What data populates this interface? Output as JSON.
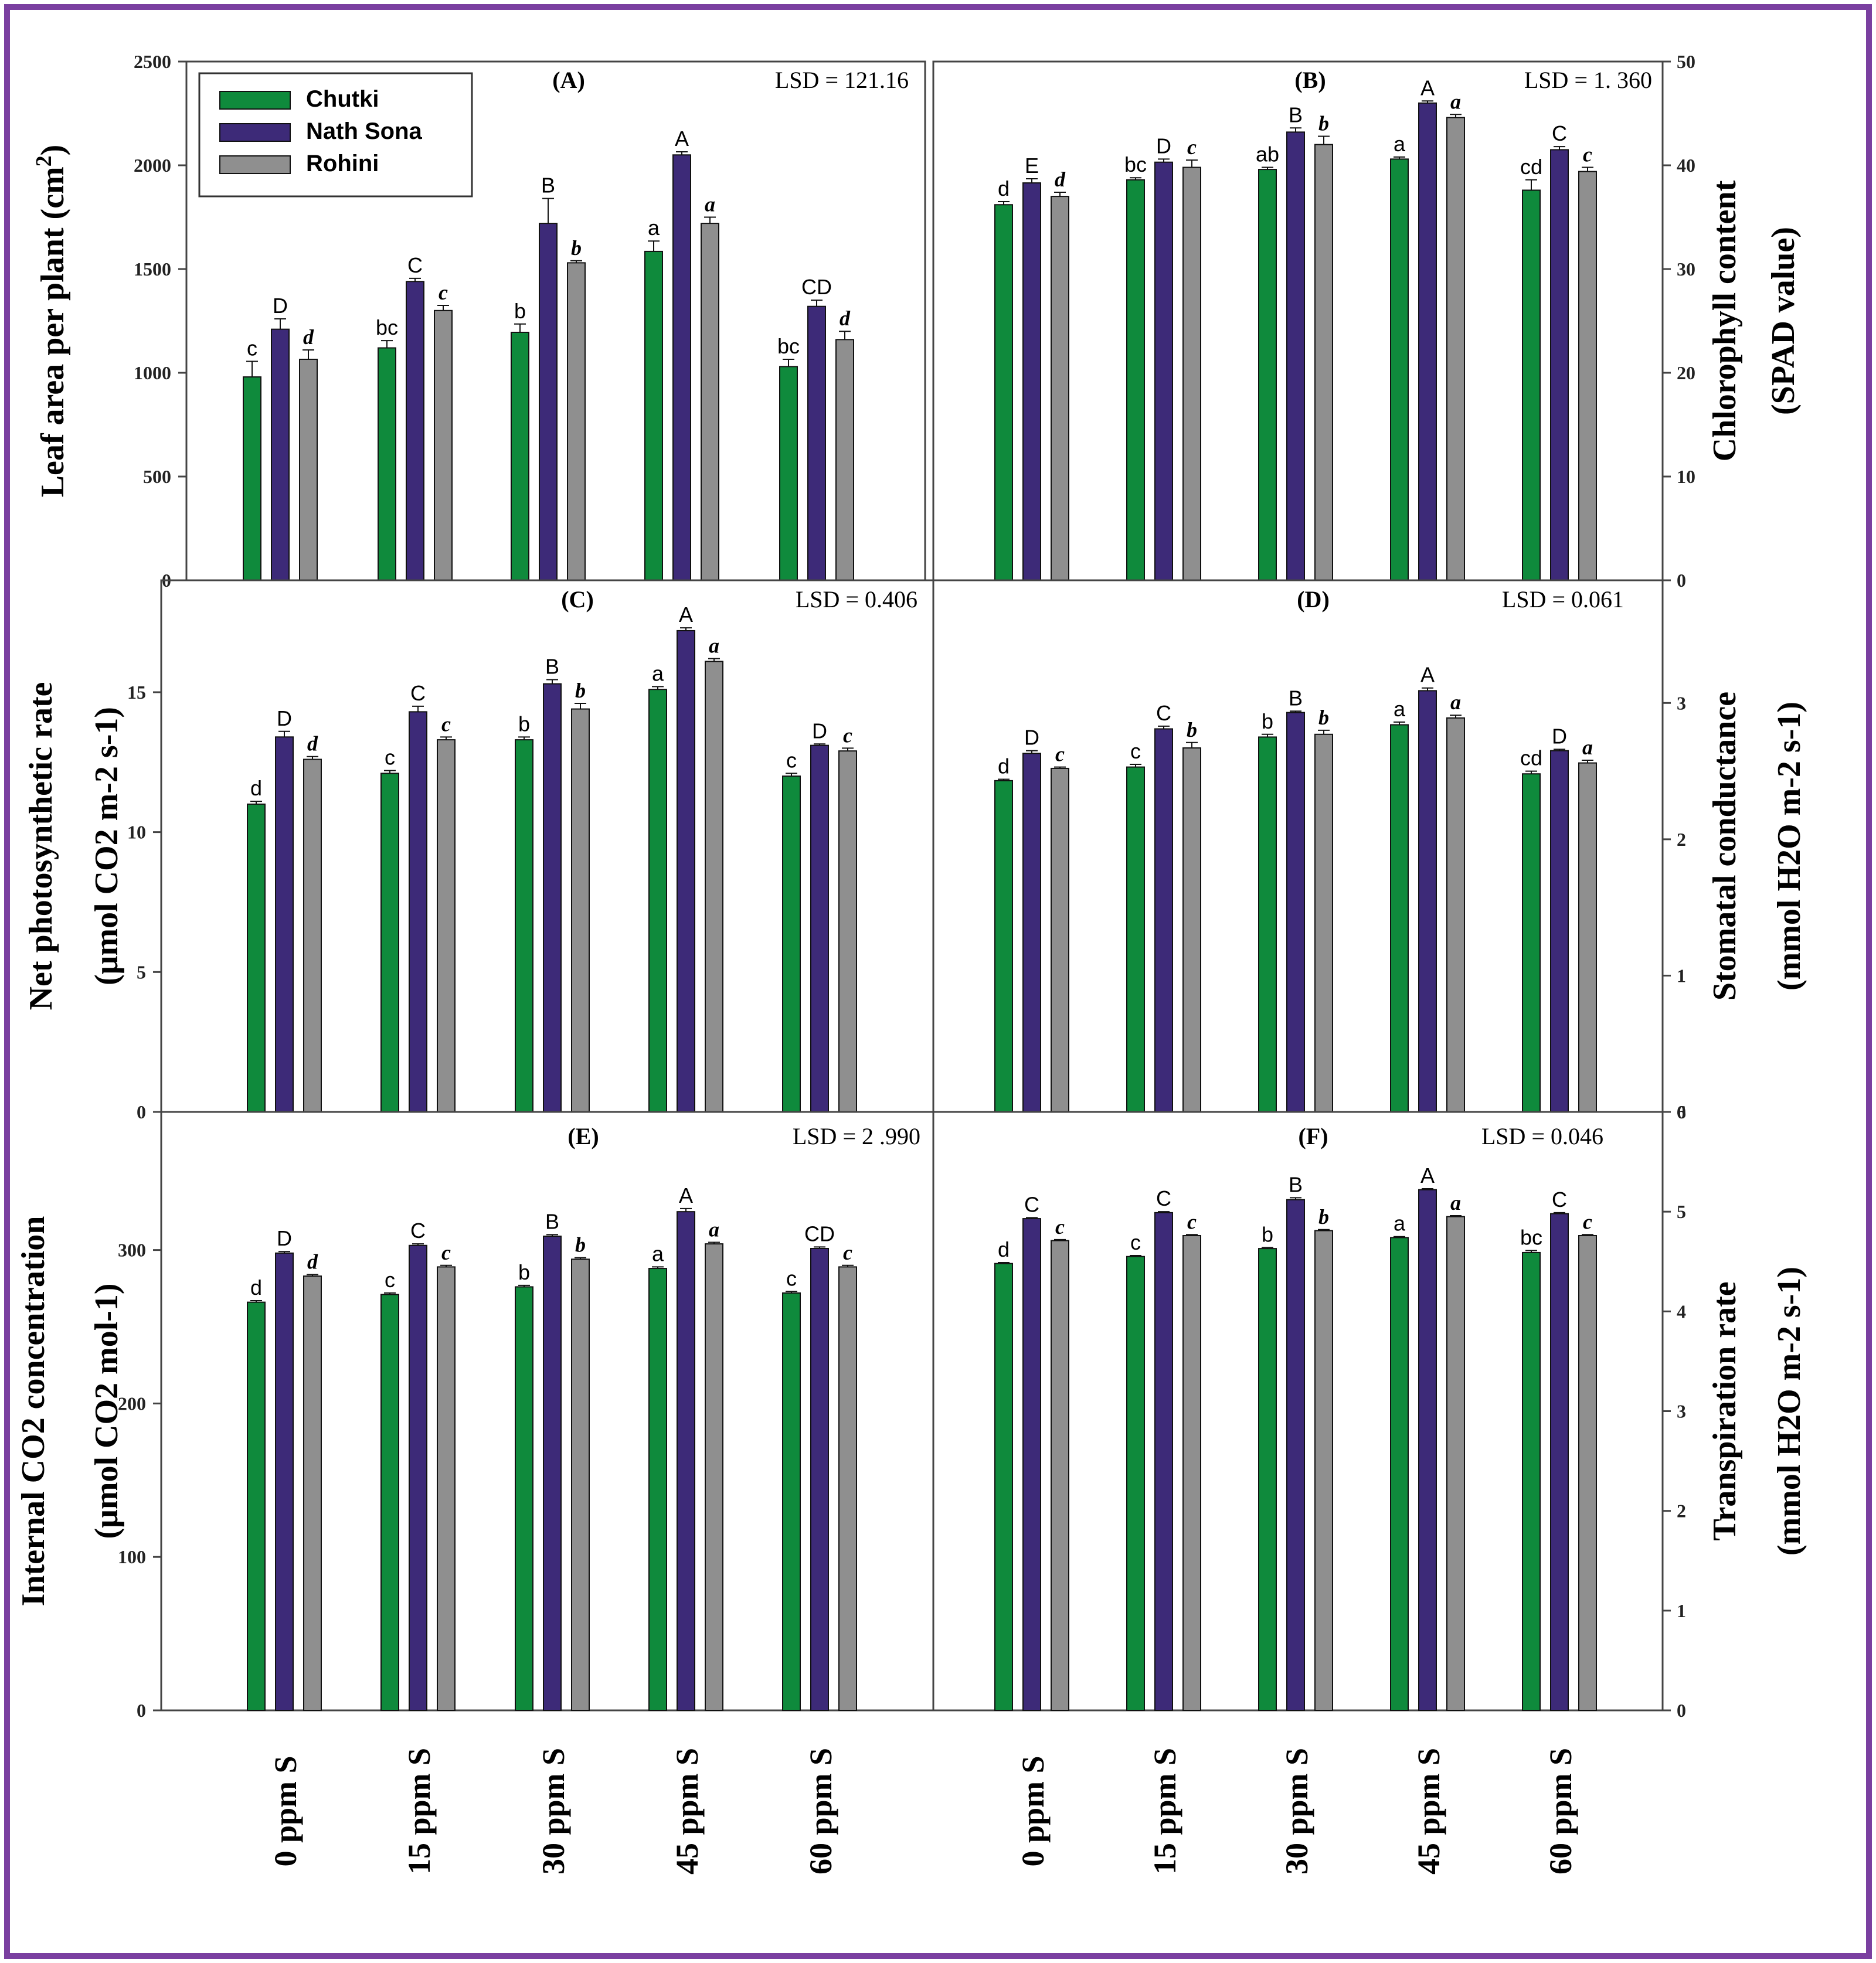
{
  "colors": {
    "frame": "#7a3fa0",
    "Chutki": "#0f8a3c",
    "Nath Sona": "#3d2a78",
    "Rohini": "#8f8f8f"
  },
  "legend": [
    "Chutki",
    "Nath Sona",
    "Rohini"
  ],
  "x_categories": [
    "0 ppm S",
    "15 ppm S",
    "30 ppm S",
    "45 ppm S",
    "60 ppm S"
  ],
  "chart_data": [
    {
      "type": "bar",
      "panel": "(A)",
      "lsd": "LSD = 121.16",
      "ylabel": [
        "Leaf area per plant (cm",
        "2",
        ")"
      ],
      "ylim": [
        0,
        2500
      ],
      "yticks": [
        0,
        500,
        1000,
        1500,
        2000,
        2500
      ],
      "categories": [
        "0 ppm S",
        "15 ppm S",
        "30 ppm S",
        "45 ppm S",
        "60 ppm S"
      ],
      "series": [
        {
          "name": "Chutki",
          "values": [
            980,
            1120,
            1195,
            1585,
            1030
          ],
          "errors": [
            75,
            35,
            40,
            50,
            35
          ],
          "labels": [
            "c",
            "bc",
            "b",
            "a",
            "bc"
          ]
        },
        {
          "name": "Nath Sona",
          "values": [
            1210,
            1440,
            1720,
            2050,
            1320
          ],
          "errors": [
            50,
            15,
            120,
            15,
            30
          ],
          "labels": [
            "D",
            "C",
            "B",
            "A",
            "CD"
          ]
        },
        {
          "name": "Rohini",
          "values": [
            1065,
            1300,
            1530,
            1720,
            1160
          ],
          "errors": [
            45,
            25,
            10,
            30,
            40
          ],
          "labels": [
            "d",
            "c",
            "b",
            "a",
            "d"
          ]
        }
      ]
    },
    {
      "type": "bar",
      "panel": "(B)",
      "lsd": "LSD = 1. 360",
      "ylabel": [
        "Chlorophyll content",
        "(SPAD value)"
      ],
      "ylim": [
        0,
        50
      ],
      "yticks": [
        0,
        10,
        20,
        30,
        40,
        50
      ],
      "categories": [
        "0 ppm S",
        "15 ppm S",
        "30 ppm S",
        "45 ppm S",
        "60 ppm S"
      ],
      "series": [
        {
          "name": "Chutki",
          "values": [
            36.2,
            38.6,
            39.6,
            40.6,
            37.6
          ],
          "errors": [
            0.3,
            0.2,
            0.2,
            0.2,
            1.0
          ],
          "labels": [
            "d",
            "bc",
            "ab",
            "a",
            "cd"
          ]
        },
        {
          "name": "Nath Sona",
          "values": [
            38.3,
            40.3,
            43.2,
            46.0,
            41.5
          ],
          "errors": [
            0.4,
            0.3,
            0.4,
            0.2,
            0.3
          ],
          "labels": [
            "E",
            "D",
            "B",
            "A",
            "C"
          ]
        },
        {
          "name": "Rohini",
          "values": [
            37.0,
            39.8,
            42.0,
            44.6,
            39.4
          ],
          "errors": [
            0.4,
            0.7,
            0.8,
            0.3,
            0.4
          ],
          "labels": [
            "d",
            "c",
            "b",
            "a",
            "c"
          ]
        }
      ]
    },
    {
      "type": "bar",
      "panel": "(C)",
      "lsd": "LSD = 0.406",
      "ylabel": [
        "Net photosynthetic rate",
        "(μmol CO2 m-2 s-1)"
      ],
      "ylim": [
        0,
        19
      ],
      "yticks": [
        0,
        5,
        10,
        15
      ],
      "categories": [
        "0 ppm S",
        "15 ppm S",
        "30 ppm S",
        "45 ppm S",
        "60 ppm S"
      ],
      "series": [
        {
          "name": "Chutki",
          "values": [
            11.0,
            12.1,
            13.3,
            15.1,
            12.0
          ],
          "errors": [
            0.1,
            0.1,
            0.1,
            0.1,
            0.1
          ],
          "labels": [
            "d",
            "c",
            "b",
            "a",
            "c"
          ]
        },
        {
          "name": "Nath Sona",
          "values": [
            13.4,
            14.3,
            15.3,
            17.2,
            13.1
          ],
          "errors": [
            0.2,
            0.2,
            0.15,
            0.1,
            0.05
          ],
          "labels": [
            "D",
            "C",
            "B",
            "A",
            "D"
          ]
        },
        {
          "name": "Rohini",
          "values": [
            12.6,
            13.3,
            14.4,
            16.1,
            12.9
          ],
          "errors": [
            0.1,
            0.1,
            0.2,
            0.1,
            0.1
          ],
          "labels": [
            "d",
            "c",
            "b",
            "a",
            "c"
          ]
        }
      ]
    },
    {
      "type": "bar",
      "panel": "(D)",
      "lsd": "LSD = 0.061",
      "ylabel": [
        "Stomatal conductance",
        "(mmol H2O m-2 s-1)"
      ],
      "ylim": [
        0,
        3.9
      ],
      "yticks": [
        0,
        1,
        2,
        3
      ],
      "categories": [
        "0 ppm S",
        "15 ppm S",
        "30 ppm S",
        "45 ppm S",
        "60 ppm S"
      ],
      "series": [
        {
          "name": "Chutki",
          "values": [
            2.43,
            2.53,
            2.75,
            2.84,
            2.48
          ],
          "errors": [
            0.01,
            0.02,
            0.02,
            0.02,
            0.02
          ],
          "labels": [
            "d",
            "c",
            "b",
            "a",
            "cd"
          ]
        },
        {
          "name": "Nath Sona",
          "values": [
            2.63,
            2.81,
            2.93,
            3.09,
            2.65
          ],
          "errors": [
            0.02,
            0.02,
            0.01,
            0.02,
            0.01
          ],
          "labels": [
            "D",
            "C",
            "B",
            "A",
            "D"
          ]
        },
        {
          "name": "Rohini",
          "values": [
            2.52,
            2.67,
            2.77,
            2.89,
            2.56
          ],
          "errors": [
            0.01,
            0.04,
            0.03,
            0.02,
            0.02
          ],
          "labels": [
            "c",
            "b",
            "b",
            "a",
            "a"
          ]
        }
      ]
    },
    {
      "type": "bar",
      "panel": "(E)",
      "lsd": "LSD = 2 .990",
      "ylabel": [
        "Internal CO2 concentration",
        "(μmol CO2 mol-1)"
      ],
      "ylim": [
        0,
        390
      ],
      "yticks": [
        0,
        100,
        200,
        300
      ],
      "categories": [
        "0 ppm S",
        "15 ppm S",
        "30 ppm S",
        "45 ppm S",
        "60 ppm S"
      ],
      "series": [
        {
          "name": "Chutki",
          "values": [
            266,
            271,
            276,
            288,
            272
          ],
          "errors": [
            1,
            1,
            1,
            1,
            1
          ],
          "labels": [
            "d",
            "c",
            "b",
            "a",
            "c"
          ]
        },
        {
          "name": "Nath Sona",
          "values": [
            298,
            303,
            309,
            325,
            301
          ],
          "errors": [
            1,
            1,
            1,
            2,
            1
          ],
          "labels": [
            "D",
            "C",
            "B",
            "A",
            "CD"
          ]
        },
        {
          "name": "Rohini",
          "values": [
            283,
            289,
            294,
            304,
            289
          ],
          "errors": [
            1,
            1,
            1,
            1,
            1
          ],
          "labels": [
            "d",
            "c",
            "b",
            "a",
            "c"
          ]
        }
      ]
    },
    {
      "type": "bar",
      "panel": "(F)",
      "lsd": "LSD = 0.046",
      "ylabel": [
        "Transpiration rate",
        "(mmol H2O m-2 s-1)"
      ],
      "ylim": [
        0,
        6.0
      ],
      "yticks": [
        0,
        1,
        2,
        3,
        4,
        5,
        6
      ],
      "categories": [
        "0 ppm S",
        "15 ppm S",
        "30 ppm S",
        "45 ppm S",
        "60 ppm S"
      ],
      "series": [
        {
          "name": "Chutki",
          "values": [
            4.48,
            4.55,
            4.63,
            4.74,
            4.59
          ],
          "errors": [
            0.01,
            0.01,
            0.01,
            0.01,
            0.02
          ],
          "labels": [
            "d",
            "c",
            "b",
            "a",
            "bc"
          ]
        },
        {
          "name": "Nath Sona",
          "values": [
            4.93,
            4.99,
            5.12,
            5.22,
            4.98
          ],
          "errors": [
            0.01,
            0.01,
            0.02,
            0.01,
            0.01
          ],
          "labels": [
            "C",
            "C",
            "B",
            "A",
            "C"
          ]
        },
        {
          "name": "Rohini",
          "values": [
            4.71,
            4.76,
            4.81,
            4.95,
            4.76
          ],
          "errors": [
            0.01,
            0.01,
            0.01,
            0.01,
            0.01
          ],
          "labels": [
            "c",
            "c",
            "b",
            "a",
            "c"
          ]
        }
      ]
    }
  ]
}
